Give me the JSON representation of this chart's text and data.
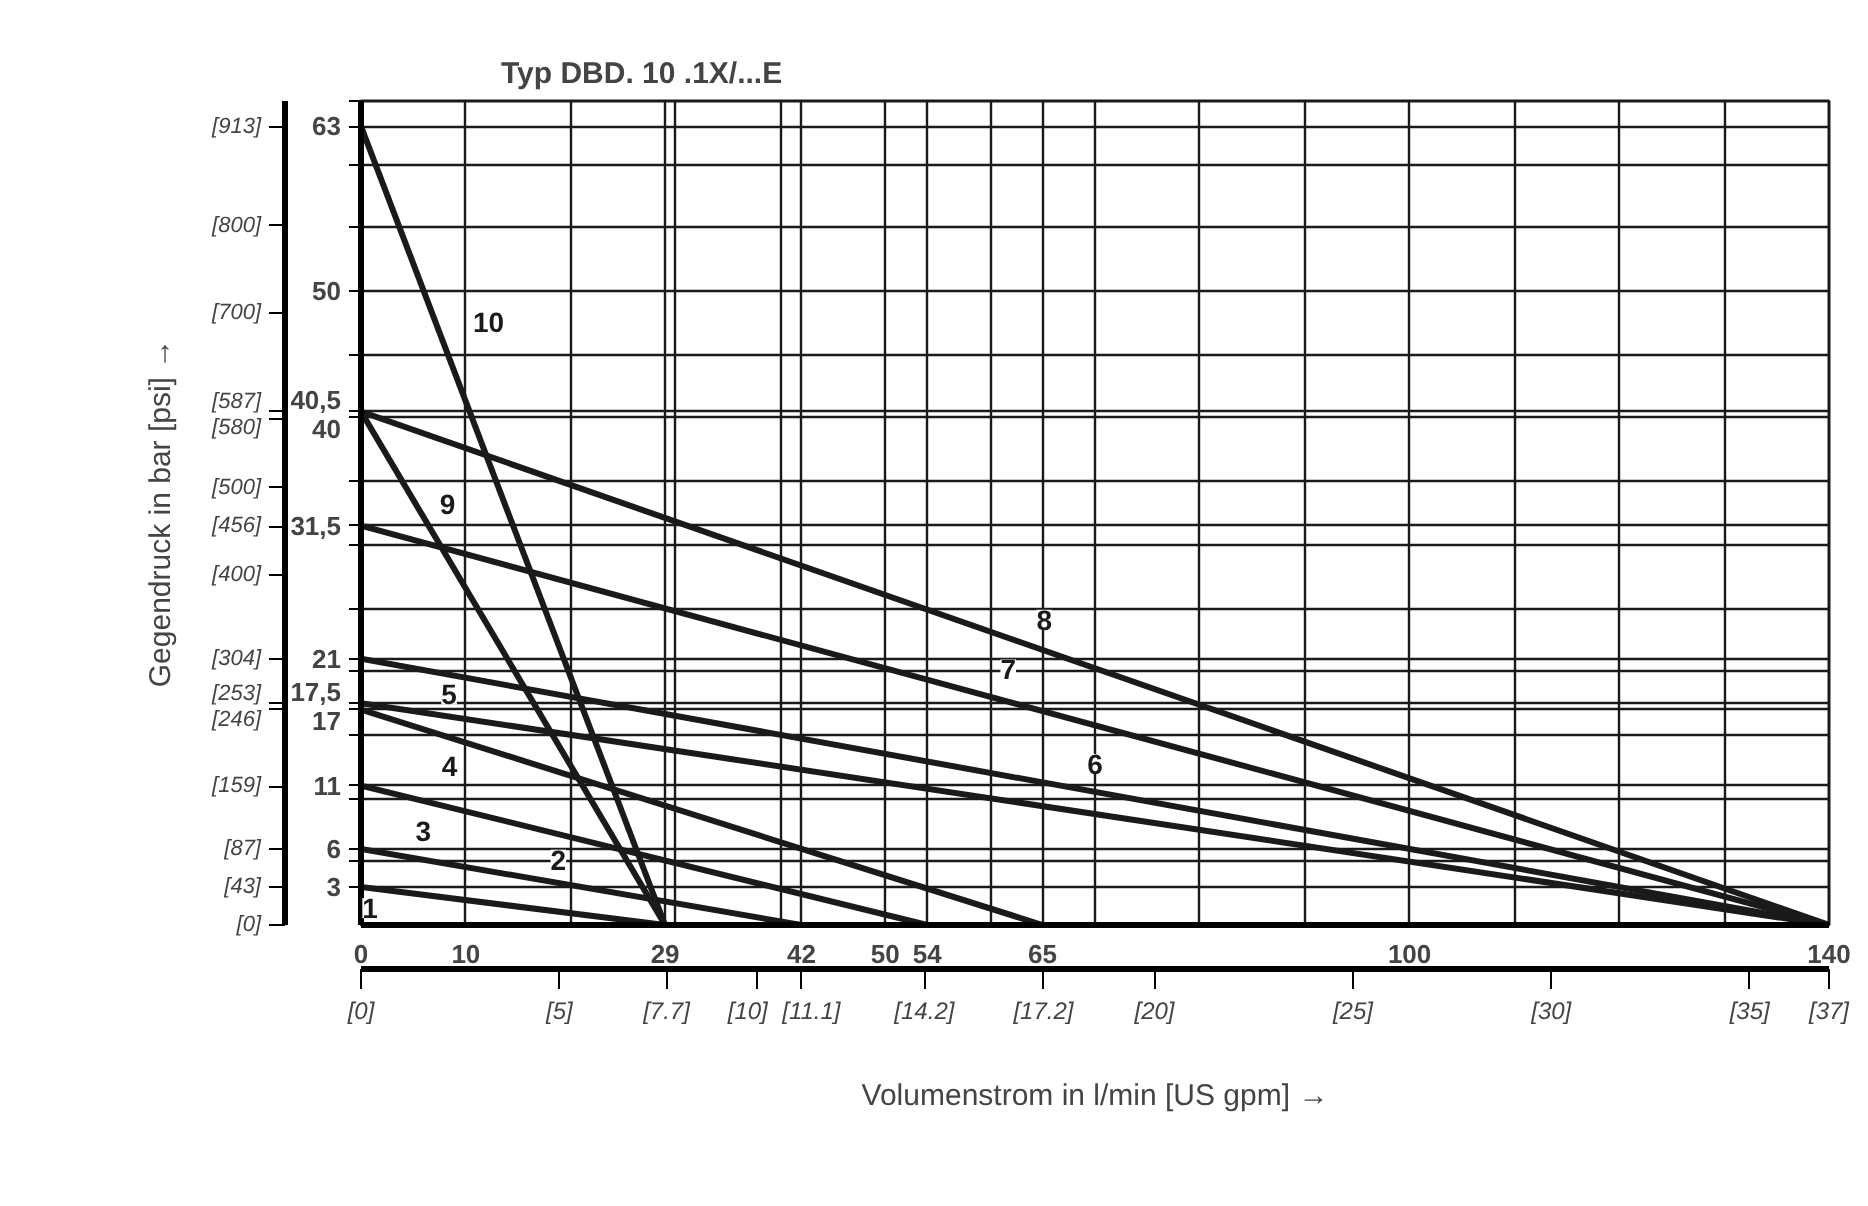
{
  "chart_data": {
    "type": "line",
    "title": "Typ DBD. 10 .1X/...E",
    "xlabel": "Volumenstrom in l/min [US gpm] →",
    "y2label": "Gegendruck in bar [psi] →",
    "xlim": [
      0,
      140
    ],
    "ylim": [
      0,
      65
    ],
    "xticks": [
      0,
      10,
      {
        "value": 20,
        "label": null
      },
      29,
      {
        "value": 30,
        "label": null
      },
      {
        "value": 40,
        "label": null
      },
      42,
      50,
      54,
      {
        "value": 60,
        "label": null
      },
      65,
      {
        "value": 70,
        "label": null
      },
      {
        "value": 80,
        "label": null
      },
      {
        "value": 90,
        "label": null
      },
      100,
      {
        "value": 110,
        "label": null
      },
      {
        "value": 120,
        "label": null
      },
      {
        "value": 130,
        "label": null
      },
      140
    ],
    "yticks": [
      3,
      {
        "value": 5,
        "label": null
      },
      6,
      {
        "value": 10,
        "label": null
      },
      11,
      {
        "value": 15,
        "label": null
      },
      17,
      {
        "value": 17.5,
        "label": "17,5"
      },
      {
        "value": 20,
        "label": null
      },
      21,
      {
        "value": 25,
        "label": null
      },
      {
        "value": 30,
        "label": null
      },
      {
        "value": 31.5,
        "label": "31,5"
      },
      {
        "value": 35,
        "label": null
      },
      40,
      {
        "value": 40.5,
        "label": "40,5"
      },
      {
        "value": 45,
        "label": null
      },
      50,
      {
        "value": 55,
        "label": null
      },
      {
        "value": 60,
        "label": null
      },
      63,
      {
        "value": 65,
        "label": null
      }
    ],
    "y2lim": [
      0,
      942.7
    ],
    "y2ticks": [
      {
        "value": 0,
        "label": "[0]"
      },
      {
        "value": 43,
        "label": "[43]"
      },
      {
        "value": 87,
        "label": "[87]"
      },
      {
        "value": 159,
        "label": "[159]"
      },
      {
        "value": 246,
        "label": "[246]"
      },
      {
        "value": 253,
        "label": "[253]"
      },
      {
        "value": 304,
        "label": "[304]"
      },
      {
        "value": 400,
        "label": "[400]"
      },
      {
        "value": 456,
        "label": "[456]"
      },
      {
        "value": 500,
        "label": "[500]"
      },
      {
        "value": 580,
        "label": "[580]"
      },
      {
        "value": 587,
        "label": "[587]"
      },
      {
        "value": 700,
        "label": "[700]"
      },
      {
        "value": 800,
        "label": "[800]"
      },
      {
        "value": 913,
        "label": "[913]"
      }
    ],
    "x2lim": [
      0,
      37
    ],
    "x2ticks": [
      {
        "value": 0,
        "label": "[0]"
      },
      {
        "value": 5,
        "label": "[5]"
      },
      {
        "value": 7.7,
        "label": "[7.7]"
      },
      {
        "value": 10,
        "label": "[10]"
      },
      {
        "value": 11.1,
        "label": "[11.1]"
      },
      {
        "value": 14.2,
        "label": "[14.2]"
      },
      {
        "value": 17.2,
        "label": "[17.2]"
      },
      {
        "value": 20,
        "label": "[20]"
      },
      {
        "value": 25,
        "label": "[25]"
      },
      {
        "value": 30,
        "label": "[30]"
      },
      {
        "value": 35,
        "label": "[35]"
      },
      {
        "value": 37,
        "label": "[37]"
      }
    ],
    "grid": true,
    "marker": "none",
    "line_style": "solid",
    "series": [
      {
        "name": "1",
        "color": "#1a1a1a",
        "x": [
          0,
          29
        ],
        "values": [
          3,
          0
        ]
      },
      {
        "name": "2",
        "color": "#1a1a1a",
        "x": [
          0,
          42
        ],
        "values": [
          6,
          0
        ]
      },
      {
        "name": "3",
        "color": "#1a1a1a",
        "x": [
          0,
          54
        ],
        "values": [
          11,
          0
        ]
      },
      {
        "name": "4",
        "color": "#1a1a1a",
        "x": [
          0,
          65
        ],
        "values": [
          17,
          0
        ]
      },
      {
        "name": "5",
        "color": "#1a1a1a",
        "x": [
          0,
          140
        ],
        "values": [
          17.5,
          0
        ]
      },
      {
        "name": "6",
        "color": "#1a1a1a",
        "x": [
          0,
          140
        ],
        "values": [
          21,
          0
        ]
      },
      {
        "name": "7",
        "color": "#1a1a1a",
        "x": [
          0,
          140
        ],
        "values": [
          31.5,
          0
        ]
      },
      {
        "name": "8",
        "color": "#1a1a1a",
        "x": [
          0,
          140
        ],
        "values": [
          40.5,
          0
        ]
      },
      {
        "name": "9",
        "color": "#1a1a1a",
        "x": [
          0,
          29
        ],
        "values": [
          40.5,
          0
        ]
      },
      {
        "name": "10",
        "color": "#1a1a1a",
        "x": [
          0,
          29
        ],
        "values": [
          63,
          0
        ]
      }
    ]
  }
}
